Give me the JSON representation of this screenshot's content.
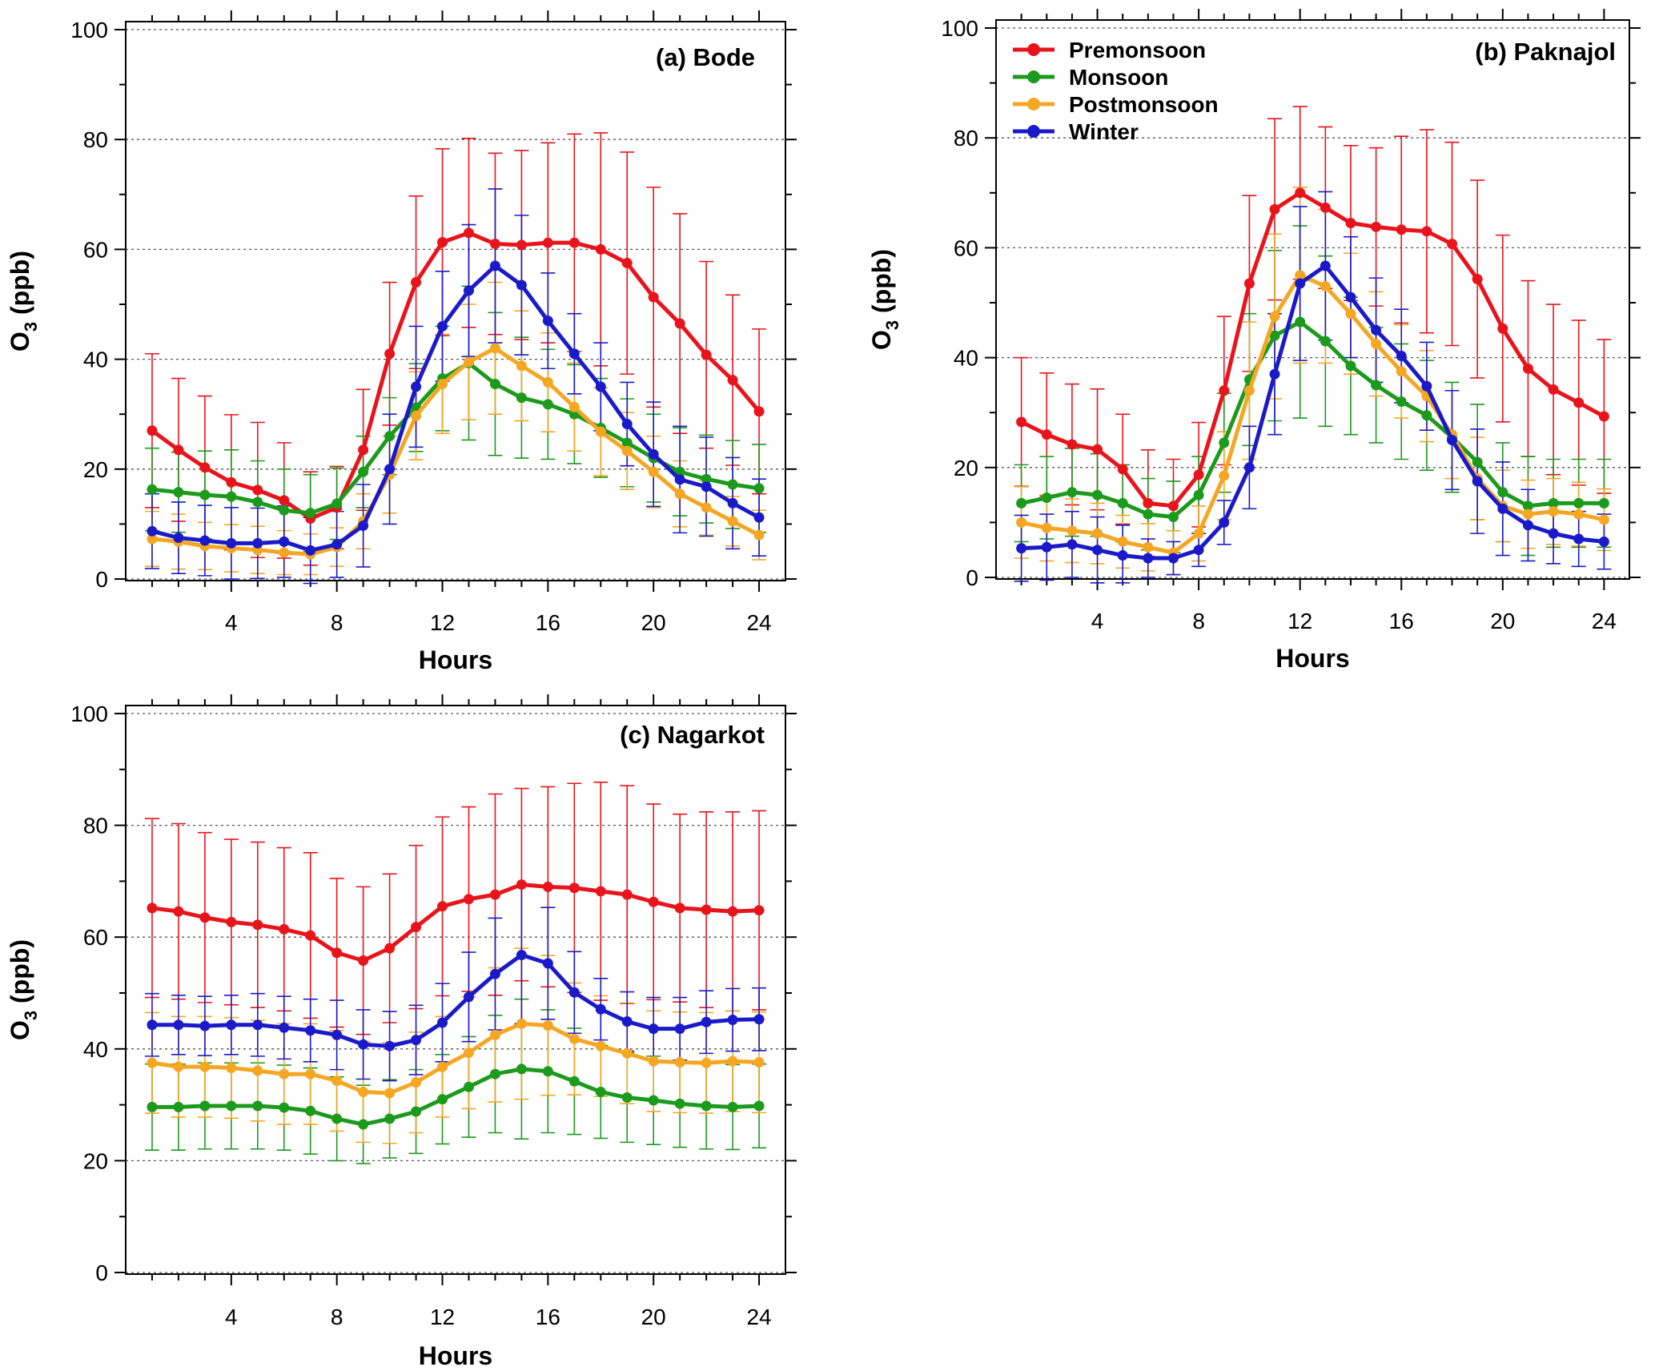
{
  "legend": {
    "entries": [
      {
        "label": "Premonsoon",
        "color": "#e8141b"
      },
      {
        "label": "Monsoon",
        "color": "#1c9a1c"
      },
      {
        "label": "Postmonsoon",
        "color": "#f5a623"
      },
      {
        "label": "Winter",
        "color": "#1a1ac8"
      }
    ]
  },
  "chart_data": [
    {
      "type": "line",
      "title": "(a) Bode",
      "xlabel": "Hours",
      "ylabel": "O3 (ppb)",
      "ylabel_main": "O",
      "ylabel_sub": "3",
      "ylabel_unit": "(ppb)",
      "xlim": [
        0,
        25
      ],
      "ylim": [
        0,
        100
      ],
      "xticks": [
        4,
        8,
        12,
        16,
        20,
        24
      ],
      "yticks": [
        0,
        20,
        40,
        60,
        80,
        100
      ],
      "grid": "dotted horizontal",
      "x": [
        1,
        2,
        3,
        4,
        5,
        6,
        7,
        8,
        9,
        10,
        11,
        12,
        13,
        14,
        15,
        16,
        17,
        18,
        19,
        20,
        21,
        22,
        23,
        24
      ],
      "series": [
        {
          "name": "Premonsoon",
          "color": "#e8141b",
          "values": [
            27,
            23.5,
            20.3,
            17.6,
            16.2,
            14.3,
            11,
            13,
            23.5,
            41,
            54,
            61.3,
            63,
            61,
            60.8,
            61.2,
            61.2,
            60,
            57.5,
            51.3,
            46.5,
            40.8,
            36.2,
            30.5
          ],
          "errors": [
            14,
            13,
            13,
            12.3,
            12.3,
            10.5,
            8.5,
            7.5,
            11,
            13,
            15.7,
            17,
            17.2,
            16.5,
            17.2,
            18.2,
            19.8,
            21.2,
            20.2,
            20,
            20,
            17,
            15.5,
            15
          ]
        },
        {
          "name": "Monsoon",
          "color": "#1c9a1c",
          "values": [
            16.3,
            15.8,
            15.3,
            15,
            14,
            12.5,
            12,
            13.7,
            19.5,
            26,
            31.2,
            36.5,
            39.3,
            35.5,
            33,
            31.8,
            30,
            27.5,
            24.8,
            22,
            19.5,
            18.2,
            17.2,
            16.5
          ],
          "errors": [
            7.5,
            7.3,
            8,
            8.5,
            7.5,
            7.5,
            7,
            6.5,
            6.5,
            7,
            8,
            9.5,
            14,
            13,
            11,
            10,
            9,
            9,
            8,
            8,
            8,
            8,
            8,
            8
          ]
        },
        {
          "name": "Postmonsoon",
          "color": "#f5a623",
          "values": [
            7.3,
            6.8,
            6,
            5.6,
            5.3,
            4.8,
            4.5,
            5.8,
            10.5,
            19,
            29.7,
            35.5,
            39.5,
            42,
            38.8,
            35.8,
            31.3,
            26.8,
            23.3,
            19.5,
            15.5,
            13,
            10.5,
            8
          ],
          "errors": [
            5,
            5,
            4.3,
            4.3,
            4.3,
            4,
            3.7,
            3.5,
            5,
            7,
            8,
            9,
            10.5,
            12,
            10,
            9,
            8,
            8,
            7,
            6.5,
            6,
            5,
            4.5,
            4.5
          ]
        },
        {
          "name": "Winter",
          "color": "#1a1ac8",
          "values": [
            8.7,
            7.5,
            7,
            6.5,
            6.5,
            6.8,
            5.2,
            6.3,
            9.7,
            20,
            35,
            46,
            52.5,
            57,
            53.5,
            47,
            41,
            35,
            28.2,
            22.7,
            18.1,
            16.8,
            13.8,
            11.2
          ],
          "errors": [
            6.8,
            6.5,
            6.4,
            6.5,
            6.4,
            6.5,
            6,
            6,
            7.5,
            10,
            11,
            10,
            12,
            14,
            12.7,
            8.7,
            7.3,
            8,
            7.6,
            9.5,
            9.7,
            9,
            8.3,
            7
          ]
        }
      ]
    },
    {
      "type": "line",
      "title": "(b) Paknajol",
      "xlabel": "Hours",
      "ylabel": "O3 (ppb)",
      "ylabel_main": "O",
      "ylabel_sub": "3",
      "ylabel_unit": "(ppb)",
      "xlim": [
        0,
        25
      ],
      "ylim": [
        0,
        100
      ],
      "xticks": [
        4,
        8,
        12,
        16,
        20,
        24
      ],
      "yticks": [
        0,
        20,
        40,
        60,
        80,
        100
      ],
      "grid": "dotted horizontal",
      "legend_position": "top-left",
      "x": [
        1,
        2,
        3,
        4,
        5,
        6,
        7,
        8,
        9,
        10,
        11,
        12,
        13,
        14,
        15,
        16,
        17,
        18,
        19,
        20,
        21,
        22,
        23,
        24
      ],
      "series": [
        {
          "name": "Premonsoon",
          "color": "#e8141b",
          "values": [
            28.3,
            26,
            24.2,
            23.3,
            19.7,
            13.5,
            13,
            18.7,
            34,
            53.5,
            67,
            70,
            67.3,
            64.5,
            63.8,
            63.3,
            63,
            60.7,
            54.3,
            45.3,
            38,
            34.2,
            31.8,
            29.3
          ],
          "errors": [
            11.7,
            11.2,
            11,
            11,
            10,
            9.7,
            8.5,
            9.5,
            13.5,
            16,
            16.5,
            15.7,
            14.7,
            14.1,
            14.4,
            17,
            18.5,
            18.5,
            18,
            17,
            16,
            15.5,
            15,
            14
          ]
        },
        {
          "name": "Monsoon",
          "color": "#1c9a1c",
          "values": [
            13.5,
            14.5,
            15.5,
            15,
            13.5,
            11.5,
            11,
            15,
            24.5,
            36,
            44,
            46.5,
            43,
            38.5,
            35,
            32,
            29.5,
            25.5,
            21,
            15.5,
            13,
            13.5,
            13.5,
            13.5
          ],
          "errors": [
            7,
            7.5,
            8,
            7.5,
            7,
            6.5,
            6.5,
            7,
            9,
            12,
            15.5,
            17.5,
            15.5,
            12.5,
            10.5,
            10.5,
            10,
            10,
            10.5,
            9,
            9,
            8,
            8,
            8
          ]
        },
        {
          "name": "Postmonsoon",
          "color": "#f5a623",
          "values": [
            10,
            9,
            8.5,
            8,
            6.5,
            5.5,
            4.5,
            8,
            18.5,
            34,
            47.5,
            55,
            53,
            48,
            42.5,
            37.5,
            33,
            26,
            18,
            13,
            11.5,
            12,
            11.5,
            10.5
          ],
          "errors": [
            6.5,
            6,
            5.8,
            5.5,
            4.8,
            4.3,
            4,
            5,
            8,
            12.5,
            15,
            16,
            14,
            11,
            9.5,
            8.5,
            8.3,
            8,
            7.5,
            6.5,
            6.2,
            6,
            5.8,
            5.6
          ]
        },
        {
          "name": "Winter",
          "color": "#1a1ac8",
          "values": [
            5.3,
            5.5,
            6,
            5,
            4,
            3.5,
            3.5,
            5,
            10,
            20,
            37,
            53.5,
            56.7,
            51,
            45,
            40.3,
            34.8,
            25,
            17.5,
            12.5,
            9.5,
            8,
            7,
            6.5
          ],
          "errors": [
            6,
            6,
            6,
            6,
            5.5,
            3.5,
            3,
            3,
            4,
            7.5,
            11,
            14,
            13.5,
            11,
            9.5,
            8.5,
            8,
            9,
            9.5,
            8.5,
            6.5,
            5.5,
            5,
            5
          ]
        }
      ]
    },
    {
      "type": "line",
      "title": "(c) Nagarkot",
      "xlabel": "Hours",
      "ylabel": "O3 (ppb)",
      "ylabel_main": "O",
      "ylabel_sub": "3",
      "ylabel_unit": "(ppb)",
      "xlim": [
        0,
        25
      ],
      "ylim": [
        0,
        100
      ],
      "xticks": [
        4,
        8,
        12,
        16,
        20,
        24
      ],
      "yticks": [
        0,
        20,
        40,
        60,
        80,
        100
      ],
      "grid": "dotted horizontal",
      "x": [
        1,
        2,
        3,
        4,
        5,
        6,
        7,
        8,
        9,
        10,
        11,
        12,
        13,
        14,
        15,
        16,
        17,
        18,
        19,
        20,
        21,
        22,
        23,
        24
      ],
      "series": [
        {
          "name": "Premonsoon",
          "color": "#e8141b",
          "values": [
            65.2,
            64.6,
            63.5,
            62.7,
            62.2,
            61.4,
            60.3,
            57.2,
            55.8,
            58,
            61.8,
            65.5,
            66.8,
            67.6,
            69.4,
            69,
            68.8,
            68.2,
            67.6,
            66.3,
            65.2,
            64.9,
            64.6,
            64.8
          ],
          "errors": [
            16,
            15.7,
            15.2,
            14.8,
            14.8,
            14.6,
            14.8,
            13.3,
            13.2,
            13.3,
            14.6,
            16,
            16.5,
            18,
            17.2,
            17.9,
            18.7,
            19.5,
            19.5,
            17.5,
            16.8,
            17.5,
            17.8,
            17.8
          ]
        },
        {
          "name": "Monsoon",
          "color": "#1c9a1c",
          "values": [
            29.6,
            29.6,
            29.8,
            29.8,
            29.8,
            29.5,
            28.9,
            27.5,
            26.5,
            27.5,
            28.8,
            31,
            33.2,
            35.5,
            36.4,
            36,
            34.2,
            32.3,
            31.3,
            30.8,
            30.2,
            29.8,
            29.6,
            29.8
          ],
          "errors": [
            7.7,
            7.7,
            7.7,
            7.7,
            7.7,
            7.6,
            7.7,
            7.5,
            7,
            7,
            7.5,
            8,
            9,
            10.5,
            12.5,
            11,
            9.5,
            8.3,
            8,
            7.9,
            7.8,
            7.7,
            7.6,
            7.5
          ]
        },
        {
          "name": "Postmonsoon",
          "color": "#f5a623",
          "values": [
            37.5,
            36.8,
            36.8,
            36.6,
            36.1,
            35.5,
            35.5,
            34.3,
            32.3,
            32.1,
            34,
            36.8,
            39.3,
            42.5,
            44.5,
            44.2,
            41.8,
            40.5,
            39.2,
            37.8,
            37.6,
            37.5,
            37.8,
            37.6
          ],
          "errors": [
            9,
            9,
            9,
            9,
            9,
            9,
            9,
            9,
            9,
            9,
            9,
            9,
            10,
            12,
            13.5,
            12.5,
            10,
            9,
            9,
            9,
            9,
            9,
            9,
            9
          ]
        },
        {
          "name": "Winter",
          "color": "#1a1ac8",
          "values": [
            44.3,
            44.3,
            44.1,
            44.3,
            44.3,
            43.8,
            43.3,
            42.5,
            40.8,
            40.5,
            41.6,
            44.7,
            49.3,
            53.4,
            56.8,
            55.3,
            50.1,
            47.1,
            44.9,
            43.6,
            43.6,
            44.8,
            45.2,
            45.3
          ],
          "errors": [
            5.6,
            5.3,
            5.3,
            5.3,
            5.6,
            5.6,
            5.6,
            6.2,
            6.2,
            6.2,
            6.2,
            7,
            8,
            10,
            12.3,
            10,
            7.3,
            5.5,
            5.3,
            5.6,
            5.6,
            5.6,
            5.6,
            5.6
          ]
        }
      ]
    }
  ]
}
